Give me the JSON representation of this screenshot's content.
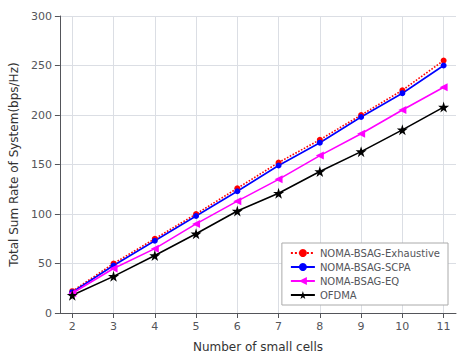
{
  "chart_data": {
    "type": "line",
    "x": [
      2,
      3,
      4,
      5,
      6,
      7,
      8,
      9,
      10,
      11
    ],
    "series": [
      {
        "name": "NOMA-BSAG-Exhaustive",
        "color": "#ff0000",
        "marker": "circle",
        "line_style": "dotted",
        "values": [
          22,
          50,
          75,
          100,
          126,
          152,
          175,
          200,
          225,
          255
        ]
      },
      {
        "name": "NOMA-BSAG-SCPA",
        "color": "#0000ff",
        "marker": "circle",
        "line_style": "solid",
        "values": [
          21,
          48,
          73,
          98,
          123,
          149,
          172,
          198,
          222,
          250
        ]
      },
      {
        "name": "NOMA-BSAG-EQ",
        "color": "#ff00ff",
        "marker": "triangle-left",
        "line_style": "solid",
        "values": [
          20,
          45,
          65,
          90,
          113,
          135,
          159,
          181,
          205,
          228
        ]
      },
      {
        "name": "OFDMA",
        "color": "#000000",
        "marker": "star",
        "line_style": "solid",
        "values": [
          18,
          37,
          58,
          80,
          103,
          121,
          143,
          163,
          185,
          208
        ]
      }
    ],
    "xlabel": "Number of small cells",
    "ylabel": "Total Sum Rate of System(bps/Hz)",
    "xlim": [
      1.7,
      11.3
    ],
    "ylim": [
      0,
      300
    ],
    "xticks": [
      2,
      3,
      4,
      5,
      6,
      7,
      8,
      9,
      10,
      11
    ],
    "yticks": [
      0,
      50,
      100,
      150,
      200,
      250,
      300
    ],
    "grid": true,
    "legend": "lower right"
  }
}
